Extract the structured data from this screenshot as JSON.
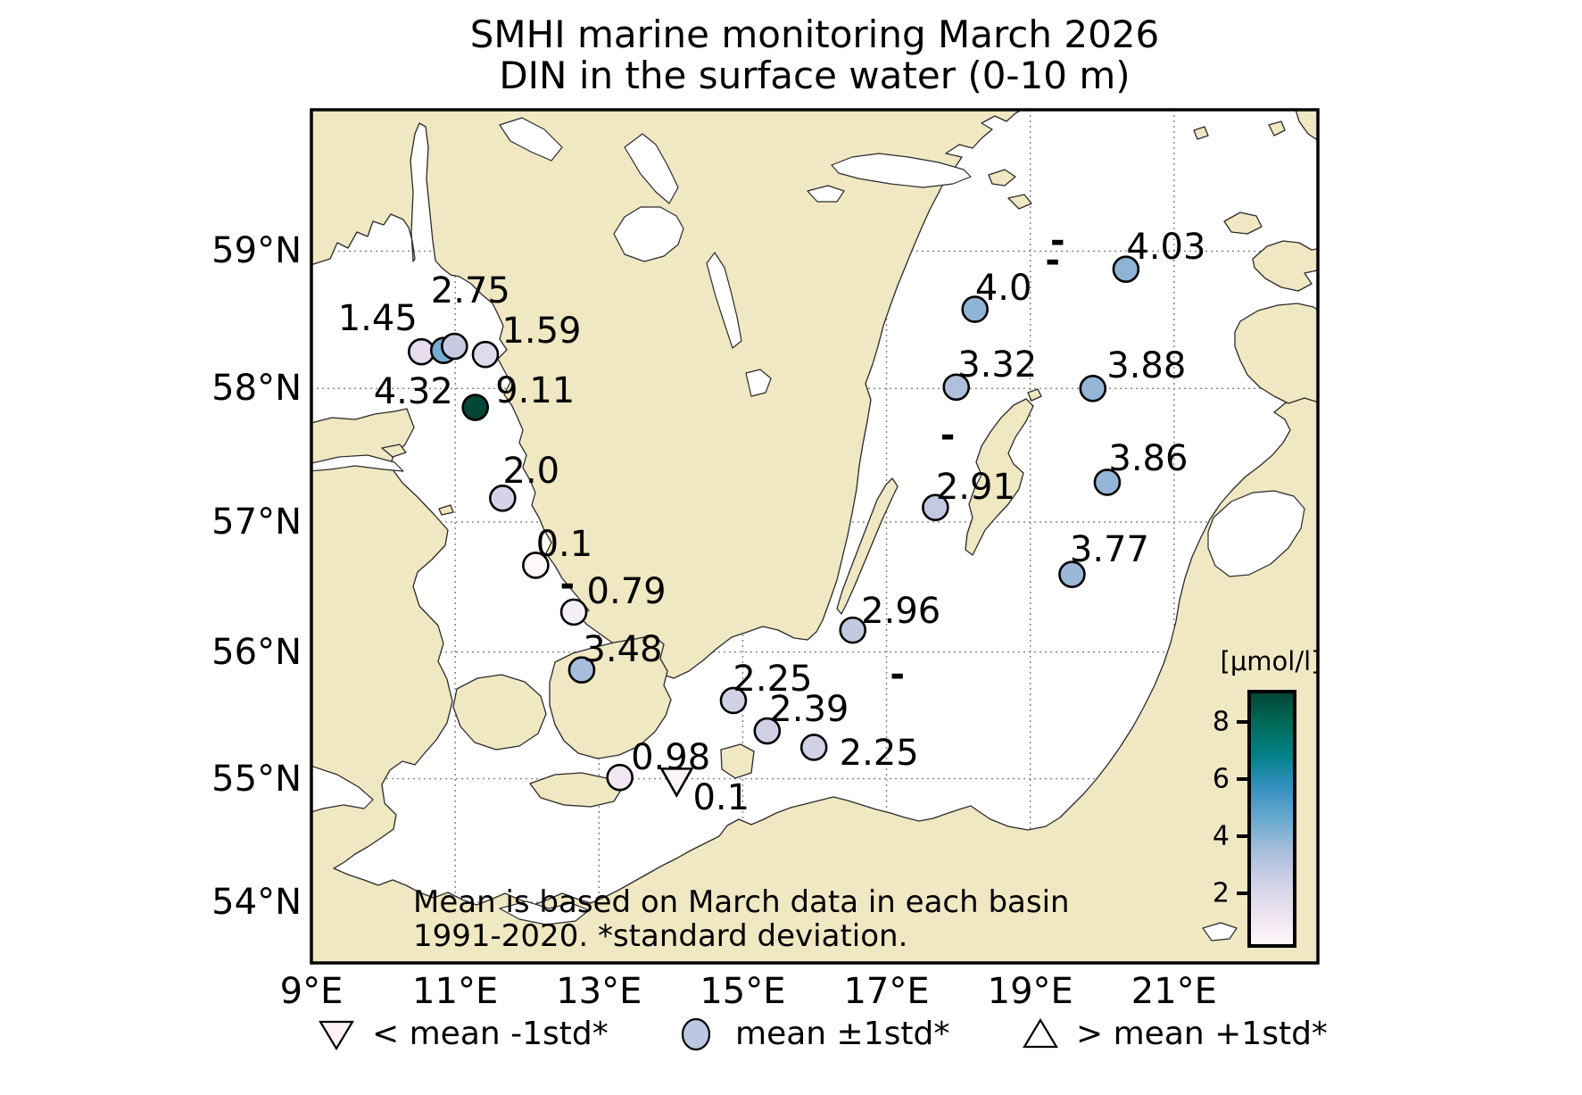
{
  "title": {
    "line1": "SMHI marine monitoring March 2026",
    "line2": "DIN in the surface water (0-10 m)"
  },
  "note": {
    "line1": "Mean is based on March data in each basin",
    "line2": "1991-2020. *standard deviation."
  },
  "legend": [
    {
      "marker": "triangle-down",
      "label": "< mean -1std*",
      "fill": "#fdf2f8"
    },
    {
      "marker": "circle",
      "label": "mean ±1std*",
      "fill": "#bcc7e1"
    },
    {
      "marker": "triangle-up",
      "label": "> mean +1std*",
      "fill": "#ffffff"
    }
  ],
  "colorbar": {
    "title": "[μmol/l]",
    "unit": "μmol/l",
    "ticks": [
      8,
      6,
      4,
      2
    ],
    "vmin": 0.09,
    "vmax": 9.13,
    "gradient_top_to_bottom": [
      "#014636",
      "#016c59",
      "#02818a",
      "#3690c0",
      "#67a9cf",
      "#a6bddb",
      "#d0d1e6",
      "#ece2f0",
      "#fff7fb"
    ]
  },
  "map_colors": {
    "land": "#f0e7c3",
    "sea": "#ffffff",
    "grid": "#7f7f7f",
    "coast": "#2a2a2a"
  },
  "chart_data": {
    "type": "scatter",
    "subtype": "geo-station-map",
    "projection": "mercator",
    "extent": {
      "lon": [
        9.0,
        23.0
      ],
      "lat": [
        53.5,
        60.0
      ]
    },
    "x_ticks": [
      {
        "label": "9°E",
        "lon": 9
      },
      {
        "label": "11°E",
        "lon": 11
      },
      {
        "label": "13°E",
        "lon": 13
      },
      {
        "label": "15°E",
        "lon": 15
      },
      {
        "label": "17°E",
        "lon": 17
      },
      {
        "label": "19°E",
        "lon": 19
      },
      {
        "label": "21°E",
        "lon": 21
      }
    ],
    "y_ticks": [
      {
        "label": "59°N",
        "lat": 59
      },
      {
        "label": "58°N",
        "lat": 58
      },
      {
        "label": "57°N",
        "lat": 57
      },
      {
        "label": "56°N",
        "lat": 56
      },
      {
        "label": "55°N",
        "lat": 55
      },
      {
        "label": "54°N",
        "lat": 54
      }
    ],
    "stations": [
      {
        "label": "1.45",
        "value": 1.45,
        "lon": 10.53,
        "lat": 58.27,
        "color": "#e6dcee",
        "marker": "circle",
        "label_offset": [
          -49,
          -37
        ]
      },
      {
        "label": "4.32",
        "value": 4.32,
        "lon": 10.84,
        "lat": 58.28,
        "color": "#76acd1",
        "marker": "circle",
        "label_offset": [
          -34,
          46
        ]
      },
      {
        "label": "2.75",
        "value": 2.75,
        "lon": 10.99,
        "lat": 58.31,
        "color": "#c6cbe2",
        "marker": "circle",
        "label_offset": [
          18,
          -62
        ]
      },
      {
        "label": "1.59",
        "value": 1.59,
        "lon": 11.42,
        "lat": 58.25,
        "color": "#e0daed",
        "marker": "circle",
        "label_offset": [
          63,
          -26
        ]
      },
      {
        "label": "9.11",
        "value": 9.11,
        "lon": 11.28,
        "lat": 57.86,
        "color": "#014636",
        "marker": "circle",
        "label_offset": [
          67,
          -18
        ]
      },
      {
        "label": "2.0",
        "value": 2.0,
        "lon": 11.66,
        "lat": 57.18,
        "color": "#d5d3e8",
        "marker": "circle",
        "label_offset": [
          32,
          -30
        ]
      },
      {
        "label": "0.1",
        "value": 0.1,
        "lon": 12.12,
        "lat": 56.67,
        "color": "#fff7fb",
        "marker": "circle",
        "label_offset": [
          32,
          -23
        ]
      },
      {
        "label": "0.79",
        "value": 0.79,
        "lon": 12.65,
        "lat": 56.31,
        "color": "#f4eef7",
        "marker": "circle",
        "label_offset": [
          59,
          -23
        ]
      },
      {
        "label": "3.48",
        "value": 3.48,
        "lon": 12.76,
        "lat": 55.86,
        "color": "#a6bddb",
        "marker": "circle",
        "label_offset": [
          46,
          -23
        ]
      },
      {
        "label": "0.98",
        "value": 0.98,
        "lon": 13.29,
        "lat": 55.01,
        "color": "#f0e7f2",
        "marker": "circle",
        "label_offset": [
          57,
          -22
        ]
      },
      {
        "label": "0.1",
        "value": 0.1,
        "lon": 14.08,
        "lat": 54.98,
        "color": "#fdf4fa",
        "marker": "triangle-down",
        "label_offset": [
          50,
          19
        ]
      },
      {
        "label": "2.25",
        "value": 2.25,
        "lon": 14.87,
        "lat": 55.62,
        "color": "#d1d1e6",
        "marker": "circle",
        "label_offset": [
          44,
          -24
        ]
      },
      {
        "label": "2.39",
        "value": 2.39,
        "lon": 15.34,
        "lat": 55.38,
        "color": "#cfd0e5",
        "marker": "circle",
        "label_offset": [
          47,
          -24
        ]
      },
      {
        "label": "2.25",
        "value": 2.25,
        "lon": 15.99,
        "lat": 55.25,
        "color": "#d1d1e6",
        "marker": "circle",
        "label_offset": [
          73,
          7
        ]
      },
      {
        "label": "2.96",
        "value": 2.96,
        "lon": 16.53,
        "lat": 56.17,
        "color": "#c1c9e0",
        "marker": "circle",
        "label_offset": [
          54,
          -21
        ]
      },
      {
        "label": "2.91",
        "value": 2.91,
        "lon": 17.68,
        "lat": 57.11,
        "color": "#c2c9e1",
        "marker": "circle",
        "label_offset": [
          45,
          -23
        ]
      },
      {
        "label": "3.32",
        "value": 3.32,
        "lon": 17.97,
        "lat": 58.01,
        "color": "#aec0dc",
        "marker": "circle",
        "label_offset": [
          46,
          -25
        ]
      },
      {
        "label": "4.0",
        "value": 4.0,
        "lon": 18.23,
        "lat": 58.58,
        "color": "#8fb4d6",
        "marker": "circle",
        "label_offset": [
          32,
          -24
        ]
      },
      {
        "label": "4.03",
        "value": 4.03,
        "lon": 20.33,
        "lat": 58.87,
        "color": "#8eb3d5",
        "marker": "circle",
        "label_offset": [
          45,
          -25
        ]
      },
      {
        "label": "3.88",
        "value": 3.88,
        "lon": 19.87,
        "lat": 58.0,
        "color": "#94b6d7",
        "marker": "circle",
        "label_offset": [
          60,
          -25
        ]
      },
      {
        "label": "3.86",
        "value": 3.86,
        "lon": 20.07,
        "lat": 57.3,
        "color": "#95b6d7",
        "marker": "circle",
        "label_offset": [
          46,
          -26
        ]
      },
      {
        "label": "3.77",
        "value": 3.77,
        "lon": 19.58,
        "lat": 56.6,
        "color": "#99b8d8",
        "marker": "circle",
        "label_offset": [
          42,
          -28
        ]
      }
    ],
    "missing_markers": {
      "symbol": "-",
      "positions": [
        {
          "lon": 19.38,
          "lat": 59.07
        },
        {
          "lon": 19.31,
          "lat": 58.93
        },
        {
          "lon": 17.85,
          "lat": 57.65
        },
        {
          "lon": 17.15,
          "lat": 55.82
        },
        {
          "lon": 12.56,
          "lat": 56.52
        }
      ]
    }
  }
}
